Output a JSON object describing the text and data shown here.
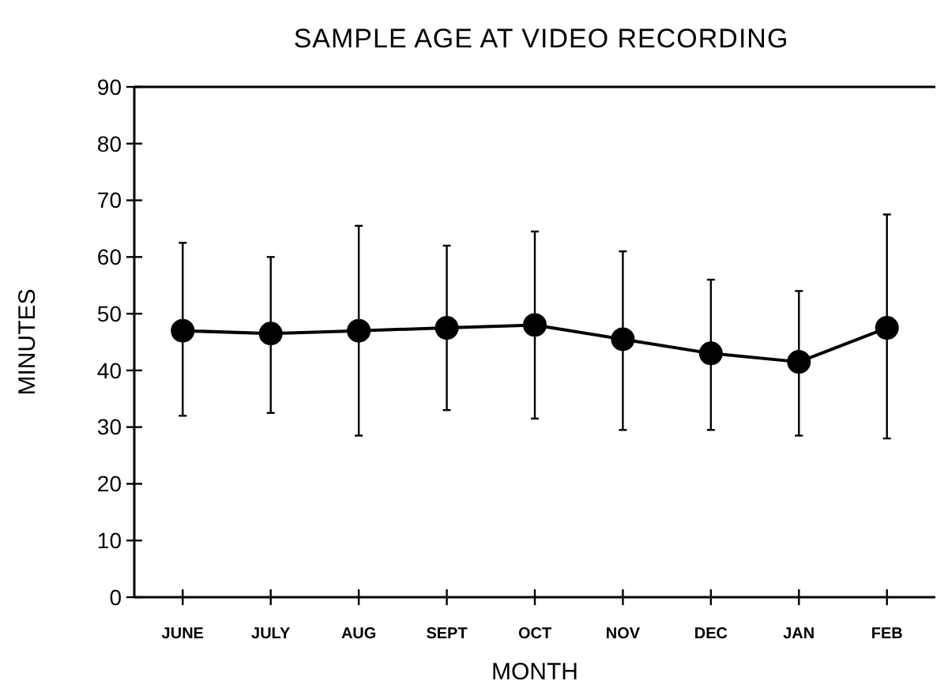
{
  "chart_data": {
    "type": "line",
    "title": "SAMPLE AGE AT VIDEO RECORDING",
    "xlabel": "MONTH",
    "ylabel": "MINUTES",
    "categories": [
      "JUNE",
      "JULY",
      "AUG",
      "SEPT",
      "OCT",
      "NOV",
      "DEC",
      "JAN",
      "FEB"
    ],
    "series": [
      {
        "color": "#000000",
        "values": [
          47,
          46.5,
          47,
          47.5,
          48,
          45.5,
          43,
          41.5,
          47.5
        ],
        "errors": [
          [
            32,
            62.5
          ],
          [
            32.5,
            60
          ],
          [
            28.5,
            65.5
          ],
          [
            33,
            62
          ],
          [
            31.5,
            64.5
          ],
          [
            29.5,
            61
          ],
          [
            29.5,
            56
          ],
          [
            28.5,
            54
          ],
          [
            28,
            67.5
          ]
        ]
      }
    ],
    "ylim": [
      0,
      90
    ],
    "yticks": [
      0,
      10,
      20,
      30,
      40,
      50,
      60,
      70,
      80,
      90
    ],
    "marker": "circle",
    "line_style": "solid"
  }
}
